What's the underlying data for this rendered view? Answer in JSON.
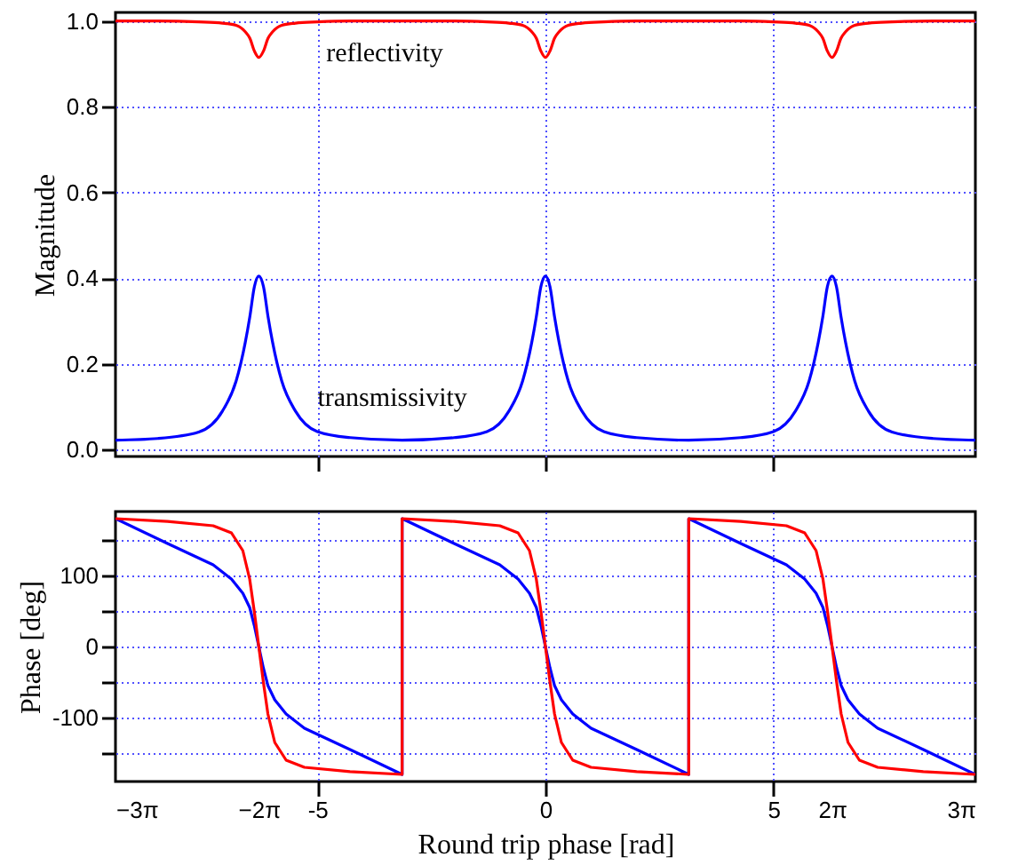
{
  "chart_data": [
    {
      "type": "line",
      "ylabel": "Magnitude",
      "xlim": [
        -9.4248,
        9.4248
      ],
      "xticks": [
        -5,
        0,
        5
      ],
      "ylim": [
        -0.016,
        1.02
      ],
      "yticks": [
        {
          "value": 0,
          "label": "0.0"
        },
        0.2,
        0.4,
        0.6,
        0.8,
        {
          "value": 1,
          "label": "1.0"
        }
      ],
      "tick_labels": "y",
      "grid": true,
      "x": [
        -9.4248,
        -8.5,
        -7.6,
        -7.08,
        -6.78,
        -6.58,
        -6.48,
        -6.38,
        -6.2832,
        -6.18,
        -6.08,
        -5.98,
        -5.78,
        -5.48,
        -5.0,
        -4.28,
        -3.1416,
        -2.0,
        -1.28,
        -0.8,
        -0.5,
        -0.3,
        -0.2,
        -0.1,
        0,
        0.1,
        0.2,
        0.3,
        0.5,
        0.8,
        1.28,
        2.0,
        3.1416,
        4.28,
        5.0,
        5.48,
        5.78,
        5.98,
        6.08,
        6.18,
        6.2832,
        6.38,
        6.48,
        6.58,
        6.78,
        7.08,
        7.6,
        8.5,
        9.4248
      ],
      "series": [
        {
          "name": "reflectivity",
          "color": "#ff0000",
          "values": [
            1.0,
            1.0,
            0.998,
            0.995,
            0.99,
            0.975,
            0.96,
            0.93,
            0.915,
            0.93,
            0.96,
            0.975,
            0.99,
            0.995,
            0.998,
            1.0,
            1.0,
            1.0,
            0.998,
            0.995,
            0.99,
            0.975,
            0.96,
            0.93,
            0.915,
            0.93,
            0.96,
            0.975,
            0.99,
            0.995,
            0.998,
            1.0,
            1.0,
            1.0,
            0.998,
            0.995,
            0.99,
            0.975,
            0.96,
            0.93,
            0.915,
            0.93,
            0.96,
            0.975,
            0.99,
            0.995,
            0.998,
            1.0,
            1.0
          ]
        },
        {
          "name": "transmissivity",
          "color": "#0000ff",
          "values": [
            0.022,
            0.026,
            0.041,
            0.09,
            0.16,
            0.25,
            0.31,
            0.38,
            0.405,
            0.38,
            0.31,
            0.25,
            0.16,
            0.09,
            0.042,
            0.028,
            0.022,
            0.028,
            0.042,
            0.09,
            0.16,
            0.25,
            0.31,
            0.38,
            0.405,
            0.38,
            0.31,
            0.25,
            0.16,
            0.09,
            0.042,
            0.028,
            0.022,
            0.028,
            0.042,
            0.09,
            0.16,
            0.25,
            0.31,
            0.38,
            0.405,
            0.38,
            0.31,
            0.25,
            0.16,
            0.09,
            0.041,
            0.026,
            0.022
          ]
        }
      ]
    },
    {
      "type": "line",
      "xlabel": "Round trip phase [rad]",
      "ylabel": "Phase [deg]",
      "xlim": [
        -9.4248,
        9.4248
      ],
      "xticks": [
        {
          "value": -9.4248,
          "label": "−3π"
        },
        {
          "value": -6.2832,
          "label": "−2π"
        },
        -5,
        0,
        5,
        {
          "value": 6.2832,
          "label": "2π"
        },
        {
          "value": 9.4248,
          "label": "3π"
        }
      ],
      "ylim": [
        -190,
        190
      ],
      "yticks": [
        {
          "value": -150,
          "label": null
        },
        -100,
        {
          "value": -50,
          "label": null
        },
        0,
        {
          "value": 50,
          "label": null
        },
        100,
        {
          "value": 150,
          "label": null
        }
      ],
      "grid": true,
      "x": [
        -9.4248,
        -8.2832,
        -7.2832,
        -6.8832,
        -6.6332,
        -6.4832,
        -6.3832,
        -6.2832,
        -6.1832,
        -6.0832,
        -5.9332,
        -5.6832,
        -5.2832,
        -4.2832,
        -3.1416,
        -3.1416,
        -2,
        -1,
        -0.6,
        -0.35,
        -0.2,
        -0.1,
        0,
        0.1,
        0.2,
        0.35,
        0.6,
        1,
        2,
        3.1416,
        3.1416,
        4.2832,
        5.2832,
        5.6832,
        5.9332,
        6.0832,
        6.1832,
        6.2832,
        6.3832,
        6.4832,
        6.6332,
        6.8832,
        7.2832,
        8.2832,
        9.4248
      ],
      "series": [
        {
          "color": "#0000ff",
          "values": [
            180,
            145,
            115,
            95,
            75,
            55,
            30,
            0,
            -30,
            -55,
            -75,
            -95,
            -115,
            -145,
            -180,
            180,
            145,
            115,
            95,
            75,
            55,
            30,
            0,
            -30,
            -55,
            -75,
            -95,
            -115,
            -145,
            -180,
            180,
            145,
            115,
            95,
            75,
            55,
            30,
            0,
            -30,
            -55,
            -75,
            -95,
            -115,
            -145,
            -180
          ]
        },
        {
          "color": "#ff0000",
          "values": [
            180,
            176,
            170,
            160,
            135,
            95,
            50,
            0,
            -50,
            -95,
            -135,
            -160,
            -170,
            -176,
            -180,
            180,
            176,
            170,
            160,
            135,
            95,
            50,
            0,
            -50,
            -95,
            -135,
            -160,
            -170,
            -176,
            -180,
            180,
            176,
            170,
            160,
            135,
            95,
            50,
            0,
            -50,
            -95,
            -135,
            -160,
            -170,
            -176,
            -180
          ]
        }
      ]
    }
  ]
}
